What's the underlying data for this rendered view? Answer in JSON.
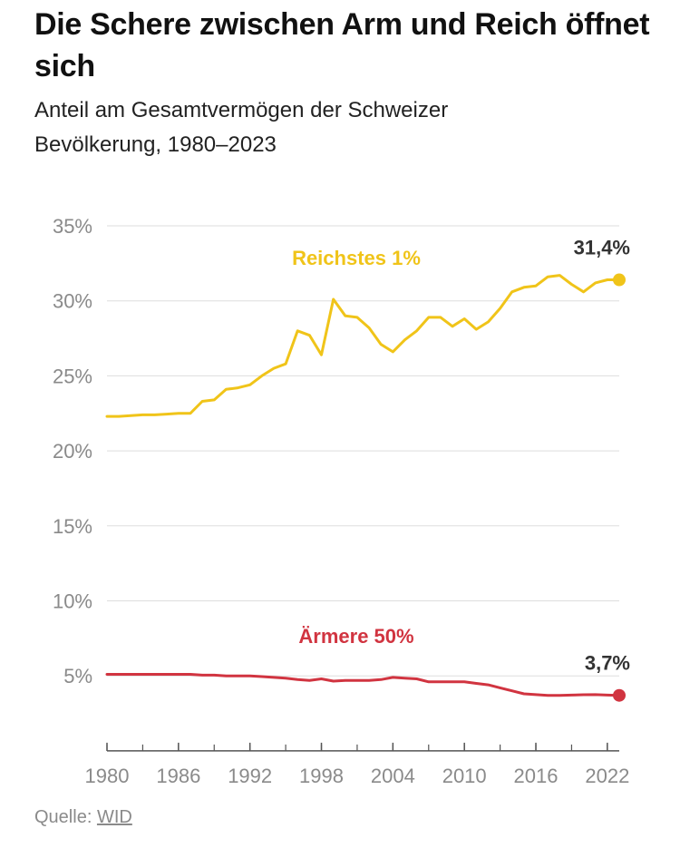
{
  "title": "Die Schere zwischen Arm und Reich öffnet sich",
  "subtitle": "Anteil am Gesamtvermögen der Schweizer Bevölkerung, 1980–2023",
  "source": {
    "label": "Quelle:",
    "link_text": "WID"
  },
  "colors": {
    "top1": "#f0c419",
    "bottom50": "#d13440",
    "grid": "#dddddd",
    "axis": "#555555"
  },
  "chart_data": {
    "type": "line",
    "title": "Die Schere zwischen Arm und Reich öffnet sich",
    "subtitle": "Anteil am Gesamtvermögen der Schweizer Bevölkerung, 1980–2023",
    "xlabel": "",
    "ylabel": "",
    "xlim": [
      1980,
      2023
    ],
    "ylim": [
      0,
      35
    ],
    "y_ticks": [
      5,
      10,
      15,
      20,
      25,
      30,
      35
    ],
    "y_tick_labels": [
      "5%",
      "10%",
      "15%",
      "20%",
      "25%",
      "30%",
      "35%"
    ],
    "x_ticks": [
      1980,
      1986,
      1992,
      1998,
      2004,
      2010,
      2016,
      2022
    ],
    "x_tick_labels": [
      "1980",
      "1986",
      "1992",
      "1998",
      "2004",
      "2010",
      "2016",
      "2022"
    ],
    "grid": true,
    "series": [
      {
        "name": "Reichstes 1%",
        "end_label": "31,4%",
        "x": [
          1980,
          1981,
          1982,
          1983,
          1984,
          1985,
          1986,
          1987,
          1988,
          1989,
          1990,
          1991,
          1992,
          1993,
          1994,
          1995,
          1996,
          1997,
          1998,
          1999,
          2000,
          2001,
          2002,
          2003,
          2004,
          2005,
          2006,
          2007,
          2008,
          2009,
          2010,
          2011,
          2012,
          2013,
          2014,
          2015,
          2016,
          2017,
          2018,
          2019,
          2020,
          2021,
          2022,
          2023
        ],
        "values": [
          22.3,
          22.3,
          22.35,
          22.4,
          22.4,
          22.45,
          22.5,
          22.5,
          23.3,
          23.4,
          24.1,
          24.2,
          24.4,
          25.0,
          25.5,
          25.8,
          28.0,
          27.7,
          26.4,
          30.1,
          29.0,
          28.9,
          28.2,
          27.1,
          26.6,
          27.4,
          28.0,
          28.9,
          28.9,
          28.3,
          28.8,
          28.1,
          28.6,
          29.5,
          30.6,
          30.9,
          31.0,
          31.6,
          31.7,
          31.1,
          30.6,
          31.2,
          31.4,
          31.4
        ]
      },
      {
        "name": "Ärmere 50%",
        "end_label": "3,7%",
        "x": [
          1980,
          1981,
          1982,
          1983,
          1984,
          1985,
          1986,
          1987,
          1988,
          1989,
          1990,
          1991,
          1992,
          1993,
          1994,
          1995,
          1996,
          1997,
          1998,
          1999,
          2000,
          2001,
          2002,
          2003,
          2004,
          2005,
          2006,
          2007,
          2008,
          2009,
          2010,
          2011,
          2012,
          2013,
          2014,
          2015,
          2016,
          2017,
          2018,
          2019,
          2020,
          2021,
          2022,
          2023
        ],
        "values": [
          5.1,
          5.1,
          5.1,
          5.1,
          5.1,
          5.1,
          5.1,
          5.1,
          5.05,
          5.05,
          5.0,
          5.0,
          5.0,
          4.95,
          4.9,
          4.85,
          4.75,
          4.7,
          4.8,
          4.65,
          4.7,
          4.7,
          4.7,
          4.75,
          4.9,
          4.85,
          4.8,
          4.6,
          4.6,
          4.6,
          4.6,
          4.5,
          4.4,
          4.2,
          4.0,
          3.8,
          3.75,
          3.7,
          3.7,
          3.72,
          3.74,
          3.75,
          3.72,
          3.7
        ]
      }
    ]
  }
}
